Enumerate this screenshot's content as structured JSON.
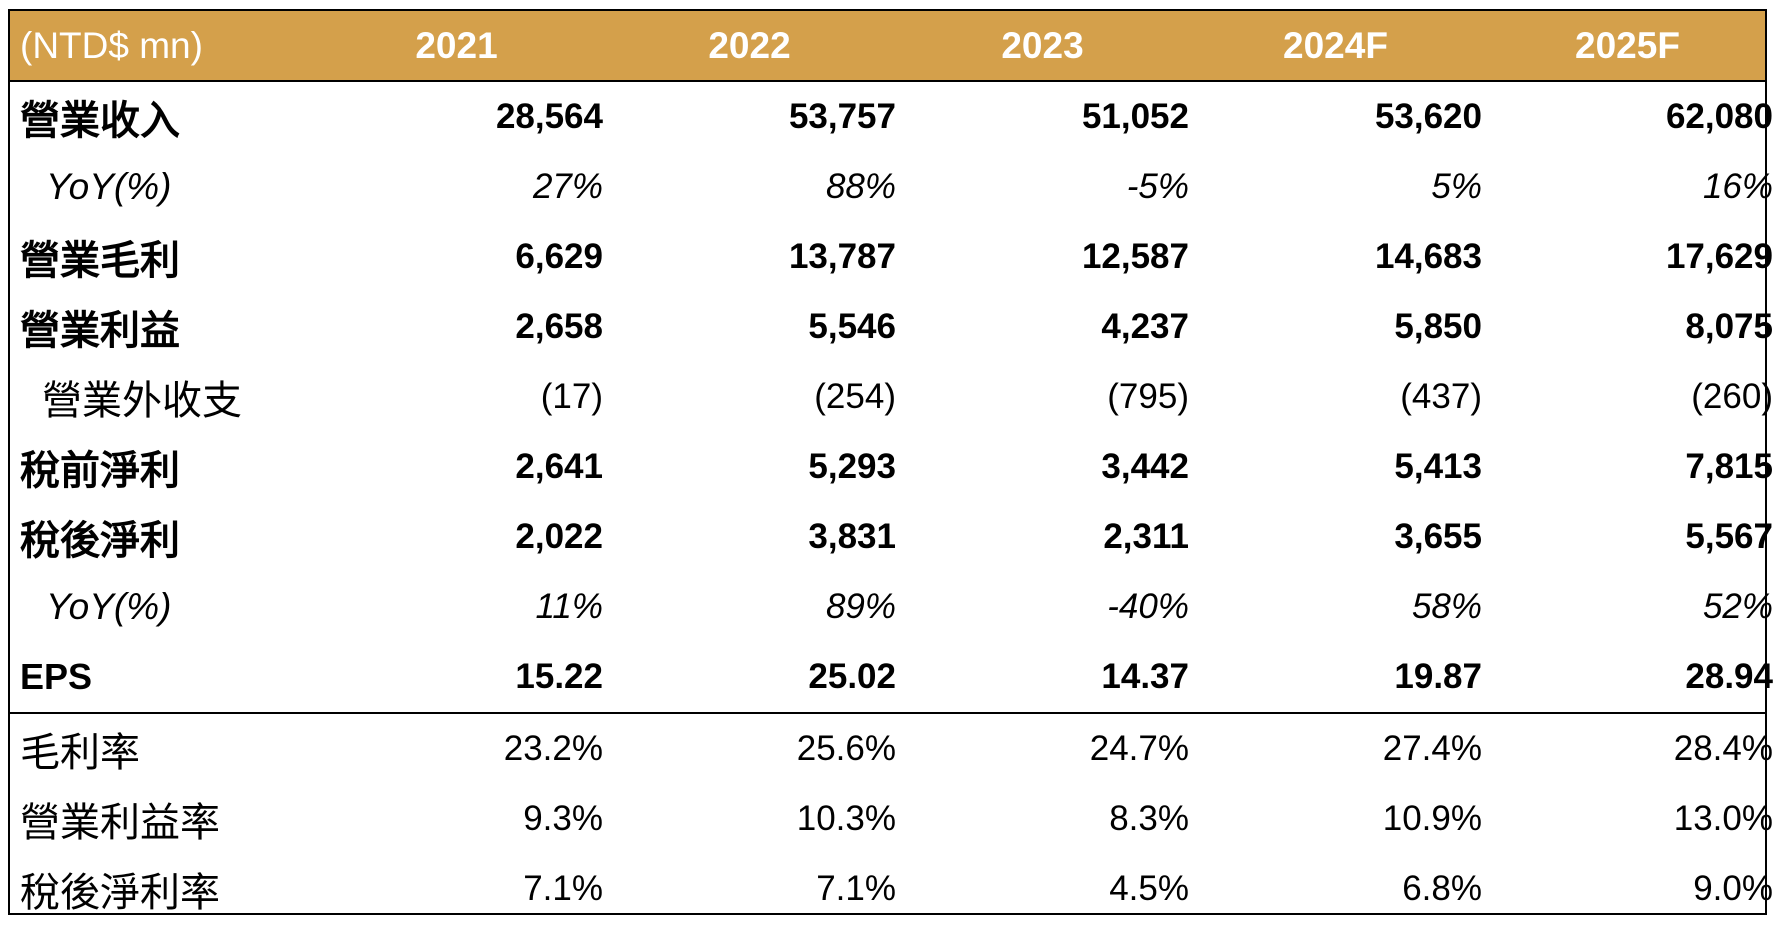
{
  "header": {
    "unit": "(NTD$ mn)",
    "years": [
      "2021",
      "2022",
      "2023",
      "2024F",
      "2025F"
    ]
  },
  "rows": [
    {
      "label": "營業收入",
      "values": [
        "28,564",
        "53,757",
        "51,052",
        "53,620",
        "62,080"
      ]
    },
    {
      "label": "YoY(%)",
      "values": [
        "27%",
        "88%",
        "-5%",
        "5%",
        "16%"
      ]
    },
    {
      "label": "營業毛利",
      "values": [
        "6,629",
        "13,787",
        "12,587",
        "14,683",
        "17,629"
      ]
    },
    {
      "label": "營業利益",
      "values": [
        "2,658",
        "5,546",
        "4,237",
        "5,850",
        "8,075"
      ]
    },
    {
      "label": "營業外收支",
      "values": [
        "(17)",
        "(254)",
        "(795)",
        "(437)",
        "(260)"
      ]
    },
    {
      "label": "稅前淨利",
      "values": [
        "2,641",
        "5,293",
        "3,442",
        "5,413",
        "7,815"
      ]
    },
    {
      "label": "稅後淨利",
      "values": [
        "2,022",
        "3,831",
        "2,311",
        "3,655",
        "5,567"
      ]
    },
    {
      "label": "YoY(%)",
      "values": [
        "11%",
        "89%",
        "-40%",
        "58%",
        "52%"
      ]
    },
    {
      "label": "EPS",
      "values": [
        "15.22",
        "25.02",
        "14.37",
        "19.87",
        "28.94"
      ]
    },
    {
      "label": "毛利率",
      "values": [
        "23.2%",
        "25.6%",
        "24.7%",
        "27.4%",
        "28.4%"
      ]
    },
    {
      "label": "營業利益率",
      "values": [
        "9.3%",
        "10.3%",
        "8.3%",
        "10.9%",
        "13.0%"
      ]
    },
    {
      "label": "稅後淨利率",
      "values": [
        "7.1%",
        "7.1%",
        "4.5%",
        "6.8%",
        "9.0%"
      ]
    }
  ],
  "colors": {
    "header_bg": "#d4a04b",
    "header_text": "#ffffff",
    "border": "#000000"
  }
}
